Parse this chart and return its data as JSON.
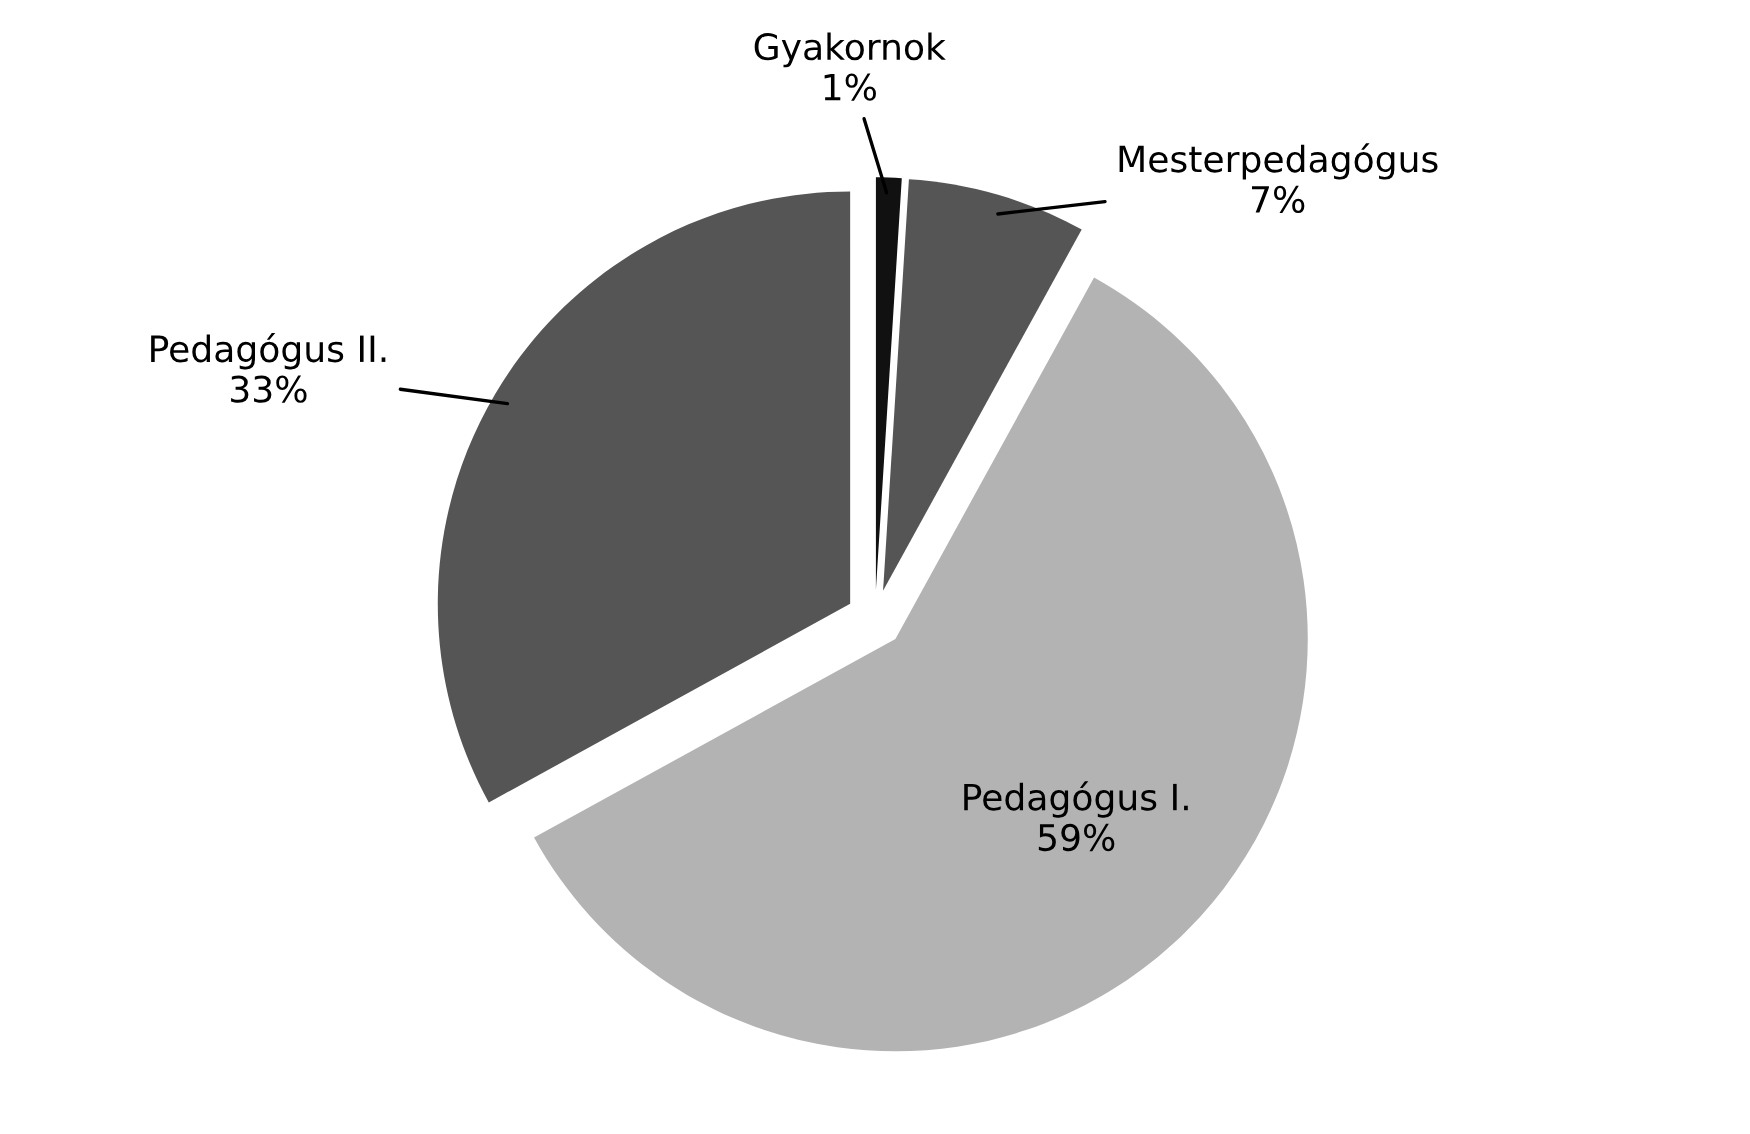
{
  "chart_data": {
    "type": "pie",
    "categories": [
      "Gyakornok",
      "Mesterpedagógus",
      "Pedagógus I.",
      "Pedagógus II."
    ],
    "values": [
      1,
      7,
      59,
      33
    ],
    "value_labels": [
      "1%",
      "7%",
      "59%",
      "33%"
    ],
    "colors": [
      "#111111",
      "#555555",
      "#b3b3b3",
      "#555555"
    ]
  }
}
